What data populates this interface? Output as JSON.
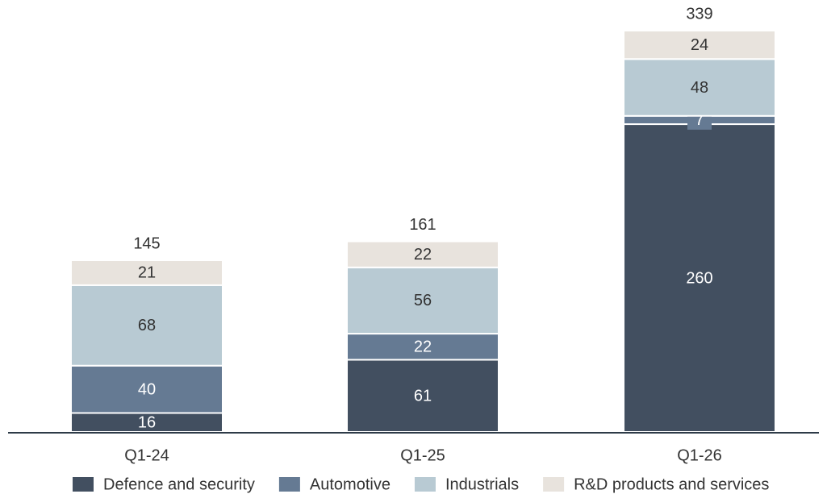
{
  "chart_data": {
    "type": "stacked_bar",
    "categories": [
      "Q1-24",
      "Q1-25",
      "Q1-26"
    ],
    "series": [
      {
        "name": "Defence and security",
        "color": "#424f60",
        "values": [
          16,
          61,
          260
        ]
      },
      {
        "name": "Automotive",
        "color": "#657a93",
        "values": [
          40,
          22,
          7
        ]
      },
      {
        "name": "Industrials",
        "color": "#b8cad3",
        "values": [
          68,
          56,
          48
        ]
      },
      {
        "name": "R&D products and services",
        "color": "#e8e3dd",
        "values": [
          21,
          22,
          24
        ]
      }
    ],
    "totals": [
      145,
      161,
      339
    ]
  }
}
